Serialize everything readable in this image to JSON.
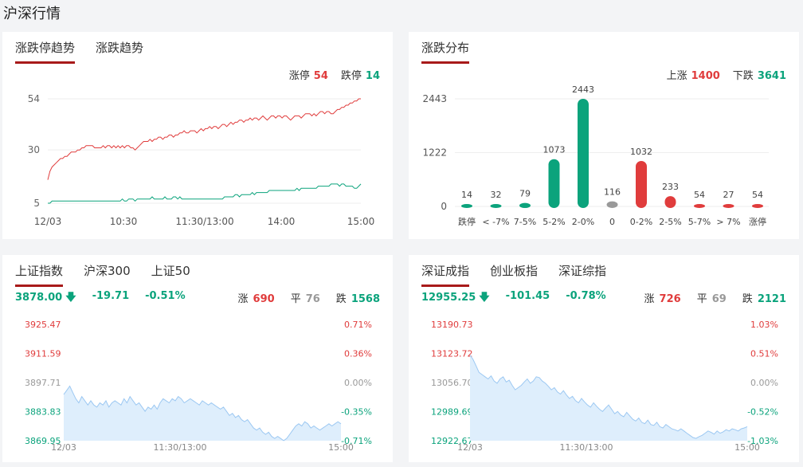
{
  "page_title": "沪深行情",
  "panels": {
    "trend": {
      "tabs": [
        {
          "label": "涨跌停趋势",
          "active": true
        },
        {
          "label": "涨跌趋势",
          "active": false
        }
      ],
      "legend": [
        {
          "label": "涨停",
          "value": "54",
          "color": "#e03c3c"
        },
        {
          "label": "跌停",
          "value": "14",
          "color": "#0ba37c"
        }
      ]
    },
    "dist": {
      "tabs": [
        {
          "label": "涨跌分布",
          "active": true
        }
      ],
      "legend": [
        {
          "label": "上涨",
          "value": "1400",
          "color": "#e03c3c"
        },
        {
          "label": "下跌",
          "value": "3641",
          "color": "#0ba37c"
        }
      ]
    },
    "sh": {
      "tabs": [
        {
          "label": "上证指数",
          "active": true
        },
        {
          "label": "沪深300",
          "active": false
        },
        {
          "label": "上证50",
          "active": false
        }
      ],
      "quote": {
        "price": "3878.00",
        "arrow": "🡇",
        "change": "-19.71",
        "pct": "-0.51%"
      },
      "stats": [
        {
          "label": "涨",
          "value": "690",
          "color": "#e03c3c"
        },
        {
          "label": "平",
          "value": "76",
          "color": "#999999"
        },
        {
          "label": "跌",
          "value": "1568",
          "color": "#0ba37c"
        }
      ]
    },
    "sz": {
      "tabs": [
        {
          "label": "深证成指",
          "active": true
        },
        {
          "label": "创业板指",
          "active": false
        },
        {
          "label": "深证综指",
          "active": false
        }
      ],
      "quote": {
        "price": "12955.25",
        "arrow": "🡇",
        "change": "-101.45",
        "pct": "-0.78%"
      },
      "stats": [
        {
          "label": "涨",
          "value": "726",
          "color": "#e03c3c"
        },
        {
          "label": "平",
          "value": "69",
          "color": "#999999"
        },
        {
          "label": "跌",
          "value": "2121",
          "color": "#0ba37c"
        }
      ]
    }
  },
  "chart_data": [
    {
      "id": "limit-trend",
      "type": "line",
      "y_ticks": [
        "54",
        "30",
        "5"
      ],
      "y_tick_values": [
        54,
        30,
        5
      ],
      "ylim": [
        5,
        54
      ],
      "x_ticks": [
        "12/03",
        "10:30",
        "11:30/13:00",
        "14:00",
        "15:00"
      ],
      "series": [
        {
          "name": "涨停",
          "color": "#e03c3c",
          "values": [
            16,
            20,
            22,
            23,
            24,
            25,
            26,
            26,
            27,
            27,
            28,
            29,
            29,
            29,
            30,
            30,
            31,
            31,
            32,
            32,
            32,
            32,
            31,
            31,
            31,
            31,
            32,
            31,
            32,
            32,
            31,
            32,
            31,
            32,
            31,
            32,
            31,
            32,
            32,
            31,
            31,
            30,
            31,
            32,
            33,
            34,
            34,
            34,
            35,
            34,
            35,
            35,
            36,
            36,
            35,
            36,
            36,
            37,
            37,
            36,
            37,
            37,
            38,
            38,
            39,
            38,
            38,
            39,
            39,
            39,
            38,
            39,
            40,
            39,
            40,
            40,
            41,
            40,
            41,
            41,
            40,
            41,
            42,
            42,
            41,
            42,
            43,
            42,
            43,
            43,
            44,
            44,
            43,
            44,
            44,
            45,
            44,
            45,
            45,
            44,
            45,
            46,
            45,
            44,
            45,
            46,
            46,
            45,
            46,
            46,
            45,
            46,
            46,
            45,
            44,
            45,
            46,
            46,
            46,
            45,
            46,
            47,
            47,
            47,
            46,
            47,
            46,
            47,
            48,
            48,
            47,
            48,
            48,
            47,
            47,
            48,
            49,
            49,
            50,
            50,
            51,
            51,
            52,
            52,
            53,
            53,
            54,
            54
          ]
        },
        {
          "name": "跌停",
          "color": "#0ba37c",
          "values": [
            5,
            5,
            6,
            6,
            6,
            6,
            6,
            6,
            6,
            6,
            6,
            6,
            6,
            6,
            6,
            6,
            6,
            6,
            6,
            6,
            6,
            6,
            6,
            6,
            6,
            6,
            6,
            6,
            6,
            6,
            6,
            6,
            6,
            6,
            6,
            7,
            6,
            6,
            7,
            7,
            7,
            6,
            7,
            7,
            7,
            7,
            7,
            7,
            7,
            8,
            7,
            7,
            7,
            7,
            7,
            8,
            7,
            7,
            7,
            8,
            8,
            7,
            8,
            7,
            7,
            7,
            7,
            7,
            7,
            7,
            7,
            7,
            7,
            7,
            7,
            7,
            7,
            7,
            7,
            7,
            7,
            7,
            7,
            8,
            8,
            8,
            8,
            8,
            9,
            9,
            8,
            9,
            9,
            9,
            9,
            9,
            10,
            9,
            10,
            10,
            10,
            10,
            10,
            10,
            11,
            11,
            11,
            11,
            11,
            11,
            11,
            11,
            11,
            11,
            11,
            11,
            11,
            12,
            11,
            12,
            12,
            12,
            12,
            12,
            12,
            12,
            12,
            13,
            13,
            13,
            13,
            13,
            13,
            14,
            14,
            14,
            14,
            13,
            14,
            14,
            13,
            13,
            13,
            13,
            12,
            12,
            13,
            14
          ]
        }
      ]
    },
    {
      "id": "up-down-distribution",
      "type": "bar",
      "y_ticks": [
        "2443",
        "1222",
        "0"
      ],
      "y_tick_values": [
        2443,
        1222,
        0
      ],
      "ylim": [
        0,
        2443
      ],
      "categories": [
        "跌停",
        "< -7%",
        "7-5%",
        "5-2%",
        "2-0%",
        "0",
        "0-2%",
        "2-5%",
        "5-7%",
        "> 7%",
        "涨停"
      ],
      "values": [
        14,
        32,
        79,
        1073,
        2443,
        116,
        1032,
        233,
        54,
        27,
        54
      ],
      "colors": [
        "#0ba37c",
        "#0ba37c",
        "#0ba37c",
        "#0ba37c",
        "#0ba37c",
        "#999999",
        "#e03c3c",
        "#e03c3c",
        "#e03c3c",
        "#e03c3c",
        "#e03c3c"
      ]
    },
    {
      "id": "sh-index-intraday",
      "type": "area",
      "left_ticks": [
        "3925.47",
        "3911.59",
        "3897.71",
        "3883.83",
        "3869.95"
      ],
      "right_ticks": [
        "0.71%",
        "0.36%",
        "0.00%",
        "-0.35%",
        "-0.71%"
      ],
      "tick_colors": [
        "#e03c3c",
        "#e03c3c",
        "#999999",
        "#0ba37c",
        "#0ba37c"
      ],
      "ylim": [
        3869.95,
        3925.47
      ],
      "x_ticks": [
        "12/03",
        "11:30/13:00",
        "15:00"
      ],
      "values": [
        3892,
        3894,
        3896,
        3893,
        3890,
        3888,
        3891,
        3889,
        3887,
        3889,
        3887,
        3886,
        3888,
        3887,
        3889,
        3886,
        3888,
        3889,
        3888,
        3887,
        3890,
        3888,
        3891,
        3889,
        3887,
        3888,
        3886,
        3884,
        3886,
        3885,
        3887,
        3885,
        3888,
        3890,
        3889,
        3888,
        3890,
        3889,
        3891,
        3890,
        3888,
        3889,
        3890,
        3889,
        3888,
        3887,
        3889,
        3888,
        3887,
        3888,
        3887,
        3886,
        3885,
        3886,
        3884,
        3882,
        3883,
        3881,
        3882,
        3880,
        3879,
        3880,
        3878,
        3876,
        3875,
        3876,
        3874,
        3873,
        3874,
        3872,
        3871,
        3872,
        3871,
        3870,
        3871,
        3873,
        3875,
        3877,
        3878,
        3877,
        3879,
        3878,
        3876,
        3877,
        3876,
        3875,
        3876,
        3877,
        3878,
        3877,
        3878,
        3879,
        3878
      ]
    },
    {
      "id": "sz-index-intraday",
      "type": "area",
      "left_ticks": [
        "13190.73",
        "13123.72",
        "13056.70",
        "12989.69",
        "12922.67"
      ],
      "right_ticks": [
        "1.03%",
        "0.51%",
        "0.00%",
        "-0.52%",
        "-1.03%"
      ],
      "tick_colors": [
        "#e03c3c",
        "#e03c3c",
        "#999999",
        "#0ba37c",
        "#0ba37c"
      ],
      "ylim": [
        12922.67,
        13190.73
      ],
      "x_ticks": [
        "12/03",
        "11:30/13:00",
        "15:00"
      ],
      "values": [
        13120,
        13110,
        13095,
        13080,
        13075,
        13070,
        13065,
        13072,
        13060,
        13055,
        13065,
        13070,
        13058,
        13062,
        13050,
        13040,
        13045,
        13050,
        13058,
        13065,
        13055,
        13060,
        13070,
        13068,
        13060,
        13055,
        13048,
        13040,
        13045,
        13035,
        13030,
        13038,
        13028,
        13020,
        13025,
        13015,
        13010,
        13020,
        13012,
        13005,
        13000,
        13010,
        13002,
        12995,
        12990,
        12998,
        13005,
        12995,
        12985,
        12990,
        12982,
        12978,
        12988,
        12980,
        12972,
        12968,
        12975,
        12965,
        12962,
        12970,
        12960,
        12958,
        12965,
        12955,
        12952,
        12960,
        12955,
        12950,
        12948,
        12945,
        12950,
        12945,
        12940,
        12935,
        12930,
        12928,
        12932,
        12935,
        12940,
        12945,
        12942,
        12938,
        12945,
        12940,
        12943,
        12948,
        12945,
        12950,
        12948,
        12945,
        12950,
        12952,
        12955
      ]
    }
  ]
}
